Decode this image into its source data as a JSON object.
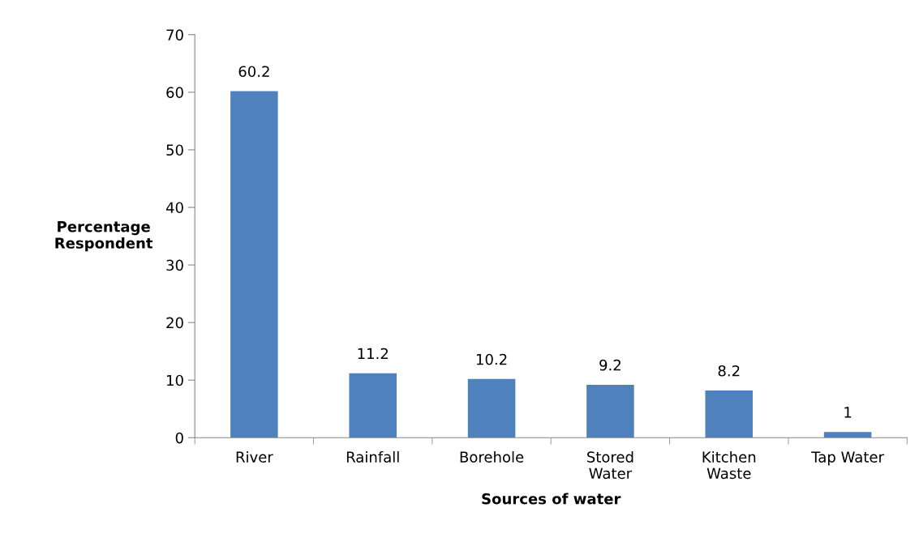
{
  "chart_data": {
    "type": "bar",
    "xlabel": "Sources of water",
    "ylabel": "Percentage\nRespondent",
    "categories": [
      "River",
      "Rainfall",
      "Borehole",
      "Stored\nWater",
      "Kitchen\nWaste",
      "Tap Water"
    ],
    "values": [
      60.2,
      11.2,
      10.2,
      9.2,
      8.2,
      1
    ],
    "color": "#4f81bd",
    "ylim": [
      0,
      70
    ],
    "yticks": [
      0,
      10,
      20,
      30,
      40,
      50,
      60,
      70
    ],
    "grid": false,
    "data_labels": true
  }
}
